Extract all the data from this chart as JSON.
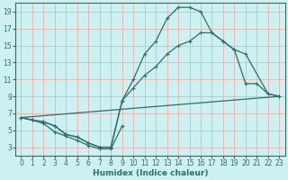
{
  "xlabel": "Humidex (Indice chaleur)",
  "bg_color": "#cdf0f0",
  "grid_color": "#e8b0b0",
  "line_color": "#2d6e6e",
  "xlim": [
    -0.5,
    23.5
  ],
  "ylim": [
    2,
    20
  ],
  "xticks": [
    0,
    1,
    2,
    3,
    4,
    5,
    6,
    7,
    8,
    9,
    10,
    11,
    12,
    13,
    14,
    15,
    16,
    17,
    18,
    19,
    20,
    21,
    22,
    23
  ],
  "yticks": [
    3,
    5,
    7,
    9,
    11,
    13,
    15,
    17,
    19
  ],
  "line1_x": [
    0,
    1,
    2,
    3,
    4,
    5,
    6,
    7,
    8,
    9,
    10,
    11,
    12,
    13,
    14,
    15,
    16,
    17,
    18,
    19,
    20,
    21,
    22,
    23
  ],
  "line1_y": [
    6.5,
    6.2,
    6.0,
    5.5,
    4.5,
    4.2,
    3.5,
    3.0,
    3.0,
    8.5,
    11.0,
    14.0,
    15.5,
    18.2,
    19.5,
    19.5,
    19.0,
    16.5,
    15.5,
    14.5,
    10.5,
    10.5,
    9.3,
    9.0
  ],
  "line2_x": [
    0,
    1,
    2,
    3,
    4,
    5,
    6,
    7,
    8,
    9,
    10,
    11,
    12,
    13,
    14,
    15,
    16,
    17,
    18,
    19,
    20,
    22,
    23
  ],
  "line2_y": [
    6.5,
    6.2,
    6.0,
    5.5,
    4.5,
    4.2,
    3.5,
    3.0,
    3.0,
    8.5,
    10.0,
    11.5,
    12.5,
    14.0,
    15.0,
    15.5,
    16.5,
    16.5,
    15.5,
    14.5,
    14.0,
    9.3,
    9.0
  ],
  "line3_x": [
    0,
    23
  ],
  "line3_y": [
    6.5,
    9.0
  ],
  "line_low_x": [
    0,
    1,
    2,
    3,
    4,
    5,
    6,
    7,
    8,
    9
  ],
  "line_low_y": [
    6.5,
    6.2,
    5.8,
    4.8,
    4.3,
    3.8,
    3.2,
    2.8,
    2.8,
    5.5
  ]
}
